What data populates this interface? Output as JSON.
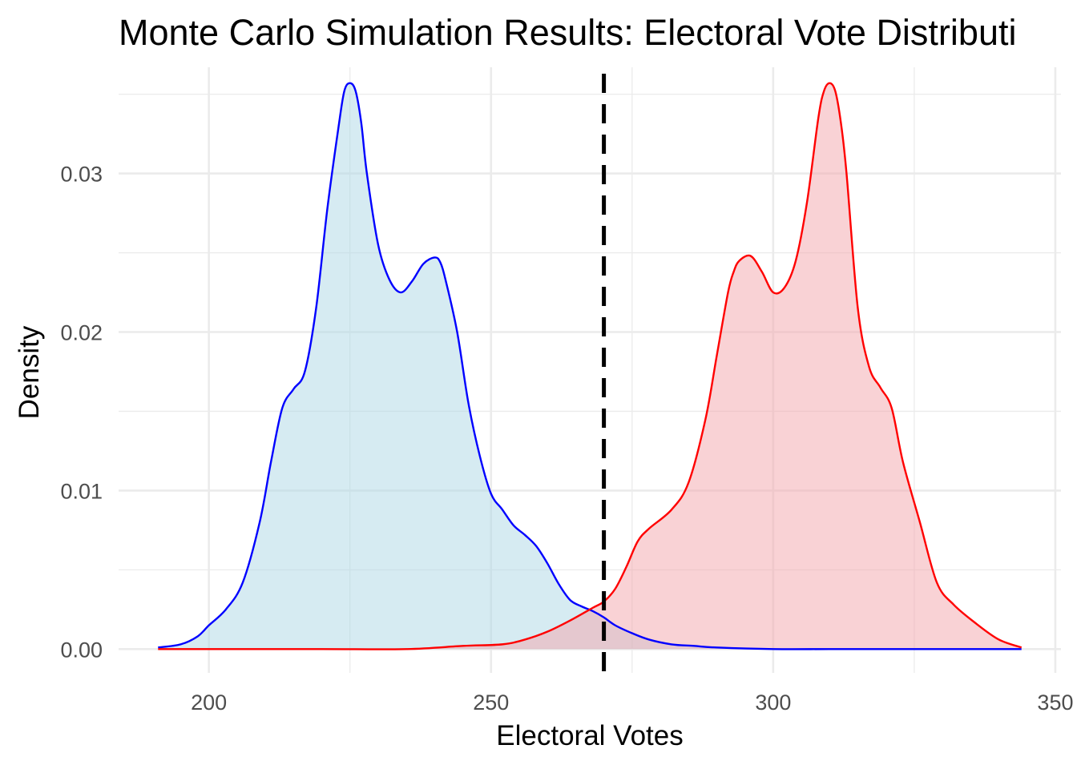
{
  "chart_data": {
    "type": "area",
    "title": "Monte Carlo Simulation Results: Electoral Vote Distributi",
    "xlabel": "Electoral Votes",
    "ylabel": "Density",
    "xlim": [
      184,
      351
    ],
    "ylim": [
      -0.0015,
      0.0367
    ],
    "x_ticks": [
      {
        "value": 200,
        "label": "200"
      },
      {
        "value": 250,
        "label": "250"
      },
      {
        "value": 300,
        "label": "300"
      },
      {
        "value": 350,
        "label": "350"
      }
    ],
    "y_ticks": [
      {
        "value": 0.0,
        "label": "0.00"
      },
      {
        "value": 0.01,
        "label": "0.01"
      },
      {
        "value": 0.02,
        "label": "0.02"
      },
      {
        "value": 0.03,
        "label": "0.03"
      }
    ],
    "grid": true,
    "legend": "none",
    "reference_line": {
      "x": 270,
      "style": "dashed",
      "color": "#000000"
    },
    "series": [
      {
        "line_color": "#0000ff",
        "fill_color": "#add8e6",
        "x": [
          191,
          195,
          198,
          200,
          203,
          206,
          209,
          211,
          213,
          215,
          217,
          219,
          221,
          223,
          224,
          225,
          226,
          227,
          228,
          230,
          232,
          234,
          236,
          238,
          240,
          241,
          242,
          244,
          246,
          248,
          250,
          252,
          254,
          256,
          258,
          260,
          262,
          264,
          266,
          268,
          270,
          272,
          275,
          278,
          282,
          286,
          290,
          300,
          310,
          320,
          330,
          344
        ],
        "y": [
          0.0001,
          0.0003,
          0.0008,
          0.0015,
          0.0025,
          0.0042,
          0.008,
          0.0118,
          0.0152,
          0.0164,
          0.0175,
          0.0215,
          0.0278,
          0.033,
          0.0352,
          0.0357,
          0.0352,
          0.0332,
          0.03,
          0.0255,
          0.0233,
          0.0225,
          0.0232,
          0.0243,
          0.0247,
          0.0244,
          0.0232,
          0.02,
          0.0155,
          0.0122,
          0.0098,
          0.0088,
          0.0078,
          0.0072,
          0.0065,
          0.0054,
          0.0041,
          0.0031,
          0.0027,
          0.0024,
          0.002,
          0.0015,
          0.001,
          0.0006,
          0.0003,
          0.0002,
          0.0001,
          0.0,
          0.0,
          0.0,
          0.0,
          0.0
        ]
      },
      {
        "line_color": "#ff0000",
        "fill_color": "#f4a6ab",
        "x": [
          191,
          200,
          220,
          235,
          245,
          252,
          256,
          260,
          264,
          268,
          270,
          272,
          274,
          276,
          278,
          282,
          285,
          288,
          290,
          292,
          293,
          294,
          296,
          298,
          300,
          302,
          304,
          306,
          308,
          309,
          310,
          311,
          312,
          313,
          315,
          317,
          319,
          321,
          323,
          326,
          329,
          332,
          336,
          340,
          344
        ],
        "y": [
          0.0,
          0.0,
          0.0,
          0.0,
          0.0002,
          0.0003,
          0.0006,
          0.0011,
          0.0018,
          0.0026,
          0.003,
          0.0038,
          0.0052,
          0.0068,
          0.0076,
          0.0088,
          0.0105,
          0.0145,
          0.0185,
          0.0225,
          0.0238,
          0.0245,
          0.0248,
          0.0238,
          0.0225,
          0.0228,
          0.0245,
          0.0282,
          0.0335,
          0.0352,
          0.0357,
          0.0352,
          0.0332,
          0.03,
          0.0215,
          0.0178,
          0.0165,
          0.0152,
          0.0118,
          0.008,
          0.0042,
          0.0028,
          0.0016,
          0.0006,
          0.0001
        ]
      }
    ]
  }
}
